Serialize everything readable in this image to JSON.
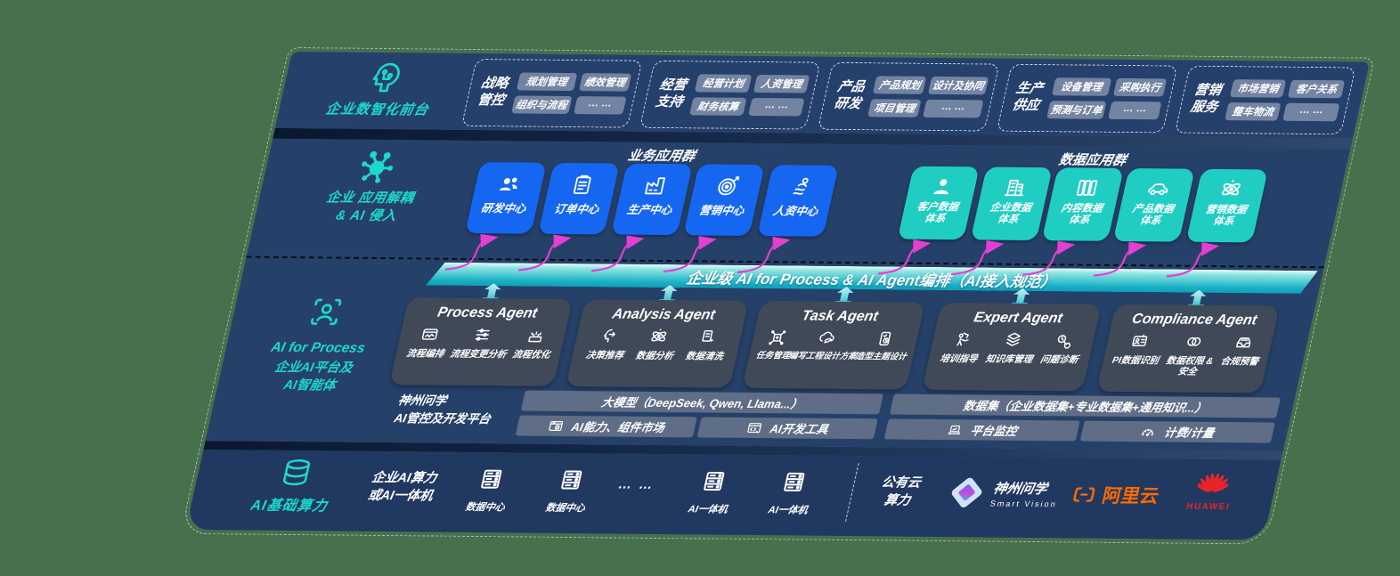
{
  "colors": {
    "background": "#47704D",
    "panel_navy": "#264169",
    "accent_teal": "#1CD9CB",
    "tile_blue": "#1567F2",
    "tile_teal": "#20CDC3",
    "bar_teal_gradient": [
      "#EAFBF9",
      "#0E9FB8"
    ],
    "arrow_magenta": "#E33FD1",
    "aliyun_orange": "#FF6A00",
    "huawei_red": "#E4262B"
  },
  "front_layer": {
    "label": "企业数智化前台",
    "icon": "head-circuit-icon",
    "groups": [
      {
        "title_line1": "战略",
        "title_line2": "管控",
        "chips": [
          "规划管理",
          "绩效管理",
          "组织与流程",
          "… …"
        ]
      },
      {
        "title_line1": "经营",
        "title_line2": "支持",
        "chips": [
          "经营计划",
          "人资管理",
          "财务核算",
          "… …"
        ]
      },
      {
        "title_line1": "产品",
        "title_line2": "研发",
        "chips": [
          "产品规划",
          "设计及协同",
          "项目管理",
          "… …"
        ]
      },
      {
        "title_line1": "生产",
        "title_line2": "供应",
        "chips": [
          "设备管理",
          "采购执行",
          "预测与订单",
          "… …"
        ]
      },
      {
        "title_line1": "营销",
        "title_line2": "服务",
        "chips": [
          "市场营销",
          "客户关系",
          "整车物流",
          "… …"
        ]
      }
    ]
  },
  "app_layer": {
    "label_line1": "企业 应用解耦",
    "label_line2": "& AI 侵入",
    "icon": "molecule-icon",
    "business_header": "业务应用群",
    "data_header": "数据应用群",
    "business_apps": [
      {
        "label": "研发中心",
        "icon": "users-icon"
      },
      {
        "label": "订单中心",
        "icon": "clipboard-icon"
      },
      {
        "label": "生产中心",
        "icon": "factory-icon"
      },
      {
        "label": "营销中心",
        "icon": "target-icon"
      },
      {
        "label": "人资中心",
        "icon": "people-activity-icon"
      }
    ],
    "data_apps": [
      {
        "line1": "客户数据",
        "line2": "体系",
        "icon": "user-icon"
      },
      {
        "line1": "企业数据",
        "line2": "体系",
        "icon": "building-icon"
      },
      {
        "line1": "内容数据",
        "line2": "体系",
        "icon": "files-icon"
      },
      {
        "line1": "产品数据",
        "line2": "体系",
        "icon": "car-icon"
      },
      {
        "line1": "营销数据",
        "line2": "体系",
        "icon": "atom-icon"
      }
    ]
  },
  "ai_layer": {
    "bar_label": "企业级 AI for Process & AI Agent编排（AI接入规范）",
    "label_en": "AI for Process",
    "label_line1": "企业AI平台及",
    "label_line2": "AI智能体",
    "icon": "person-scan-icon",
    "agents": [
      {
        "title": "Process Agent",
        "items": [
          {
            "label": "流程编排",
            "icon": "workflow-icon"
          },
          {
            "label": "流程变更分析",
            "icon": "sliders-icon"
          },
          {
            "label": "流程优化",
            "icon": "optimize-icon"
          }
        ]
      },
      {
        "title": "Analysis Agent",
        "items": [
          {
            "label": "决策推荐",
            "icon": "decision-icon"
          },
          {
            "label": "数据分析",
            "icon": "atom-icon"
          },
          {
            "label": "数据清洗",
            "icon": "clean-icon"
          }
        ]
      },
      {
        "title": "Task Agent",
        "items": [
          {
            "label": "任务管理",
            "icon": "task-icon"
          },
          {
            "label": "编写工程设计方案",
            "icon": "cloud-edit-icon"
          },
          {
            "label": "造型主题设计",
            "icon": "design-icon"
          }
        ]
      },
      {
        "title": "Expert Agent",
        "items": [
          {
            "label": "培训指导",
            "icon": "training-icon"
          },
          {
            "label": "知识库管理",
            "icon": "layers-icon"
          },
          {
            "label": "问题诊断",
            "icon": "diagnose-icon"
          }
        ]
      },
      {
        "title": "Compliance Agent",
        "items": [
          {
            "label": "PI数据识别",
            "icon": "id-card-icon"
          },
          {
            "label": "数据权限 & 安全",
            "icon": "link-icon"
          },
          {
            "label": "合规预警",
            "icon": "inbox-alert-icon"
          }
        ]
      }
    ],
    "platform": {
      "label_line1": "神州问学",
      "label_line2": "AI管控及开发平台",
      "model_bar": "大模型（DeepSeek, Qwen, Llama...）",
      "dataset_bar": "数据集（企业数据集+专业数据集+通用知识...）",
      "tool_capability": "AI能力、组件市场",
      "tool_dev": "AI开发工具",
      "tool_monitor": "平台监控",
      "tool_billing": "计费/计量"
    }
  },
  "infra_layer": {
    "label": "AI基础算力",
    "icon": "database-icon",
    "compute_line1": "企业AI算力",
    "compute_line2": "或AI一体机",
    "nodes": [
      "数据中心",
      "数据中心",
      "… …",
      "AI一体机",
      "AI一体机"
    ],
    "cloud_line1": "公有云",
    "cloud_line2": "算力",
    "logos": {
      "smartvision_cn": "神州问学",
      "smartvision_en": "Smart Vision",
      "aliyun": "阿里云",
      "huawei": "HUAWEI"
    }
  }
}
